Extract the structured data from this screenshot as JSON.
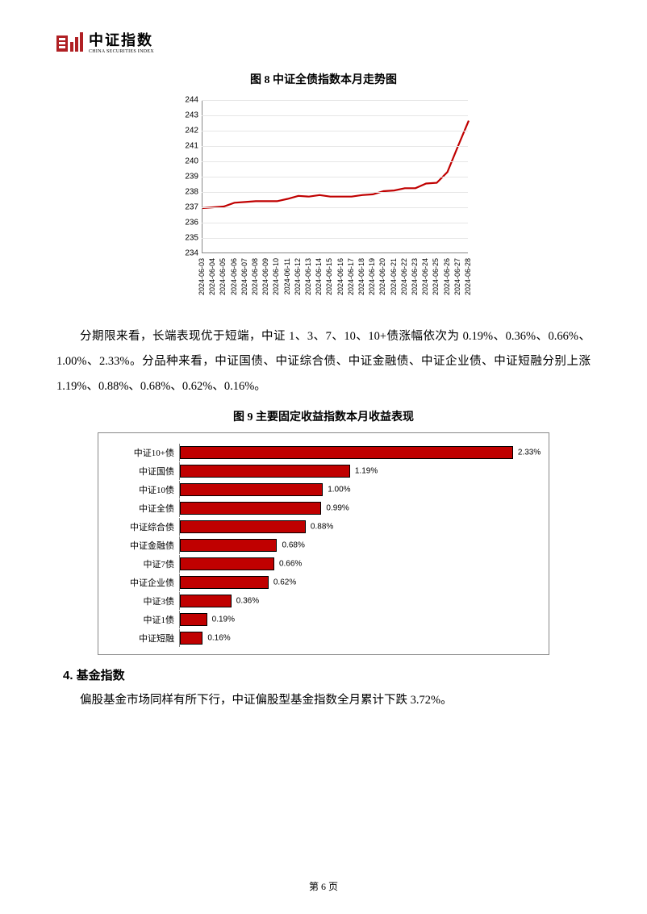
{
  "logo": {
    "cn": "中证指数",
    "en": "CHINA SECURITIES INDEX",
    "color": "#b02024"
  },
  "fig8": {
    "caption": "图 8   中证全债指数本月走势图",
    "type": "line",
    "ylim": [
      234,
      244
    ],
    "ytick_step": 1,
    "line_color": "#c00000",
    "line_width": 2.2,
    "grid_color": "#e6e6e6",
    "axis_color": "#888888",
    "tick_fontsize": 10,
    "x_labels": [
      "2024-06-03",
      "2024-06-04",
      "2024-06-05",
      "2024-06-06",
      "2024-06-07",
      "2024-06-08",
      "2024-06-09",
      "2024-06-10",
      "2024-06-11",
      "2024-06-12",
      "2024-06-13",
      "2024-06-14",
      "2024-06-15",
      "2024-06-16",
      "2024-06-17",
      "2024-06-18",
      "2024-06-19",
      "2024-06-20",
      "2024-06-21",
      "2024-06-22",
      "2024-06-23",
      "2024-06-24",
      "2024-06-25",
      "2024-06-26",
      "2024-06-27",
      "2024-06-28"
    ],
    "values": [
      236.95,
      237.0,
      237.05,
      237.3,
      237.35,
      237.4,
      237.4,
      237.4,
      237.55,
      237.75,
      237.7,
      237.8,
      237.7,
      237.7,
      237.7,
      237.8,
      237.85,
      238.05,
      238.1,
      238.25,
      238.25,
      238.55,
      238.6,
      239.3,
      241.0,
      242.65
    ]
  },
  "para1": "分期限来看，长端表现优于短端，中证 1、3、7、10、10+债涨幅依次为 0.19%、0.36%、0.66%、1.00%、2.33%。分品种来看，中证国债、中证综合债、中证金融债、中证企业债、中证短融分别上涨 1.19%、0.88%、0.68%、0.62%、0.16%。",
  "fig9": {
    "caption": "图 9   主要固定收益指数本月收益表现",
    "type": "bar-horizontal",
    "bar_color": "#c00000",
    "border_color": "#000000",
    "label_fontsize": 11,
    "value_fontsize": 10,
    "max_value": 2.5,
    "items": [
      {
        "label": "中证10+债",
        "value": 2.33,
        "display": "2.33%"
      },
      {
        "label": "中证国债",
        "value": 1.19,
        "display": "1.19%"
      },
      {
        "label": "中证10债",
        "value": 1.0,
        "display": "1.00%"
      },
      {
        "label": "中证全债",
        "value": 0.99,
        "display": "0.99%"
      },
      {
        "label": "中证综合债",
        "value": 0.88,
        "display": "0.88%"
      },
      {
        "label": "中证金融债",
        "value": 0.68,
        "display": "0.68%"
      },
      {
        "label": "中证7债",
        "value": 0.66,
        "display": "0.66%"
      },
      {
        "label": "中证企业债",
        "value": 0.62,
        "display": "0.62%"
      },
      {
        "label": "中证3债",
        "value": 0.36,
        "display": "0.36%"
      },
      {
        "label": "中证1债",
        "value": 0.19,
        "display": "0.19%"
      },
      {
        "label": "中证短融",
        "value": 0.16,
        "display": "0.16%"
      }
    ]
  },
  "section4": {
    "head": "4. 基金指数",
    "body": "偏股基金市场同样有所下行，中证偏股型基金指数全月累计下跌 3.72%。"
  },
  "footer": "第  6 页"
}
